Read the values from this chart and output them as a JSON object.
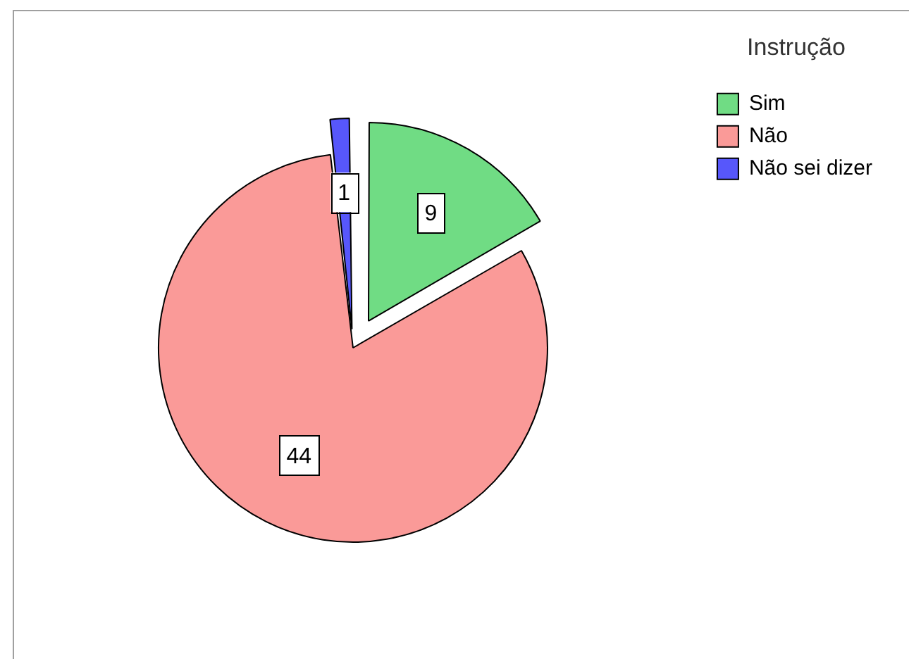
{
  "chart_data": {
    "type": "pie",
    "legend_title": "Instrução",
    "categories": [
      "Sim",
      "Não",
      "Não sei dizer"
    ],
    "values": [
      9,
      44,
      1
    ],
    "colors": [
      "#70dc84",
      "#fa9a98",
      "#5757fb"
    ],
    "data_labels": true,
    "legend": "top right"
  }
}
